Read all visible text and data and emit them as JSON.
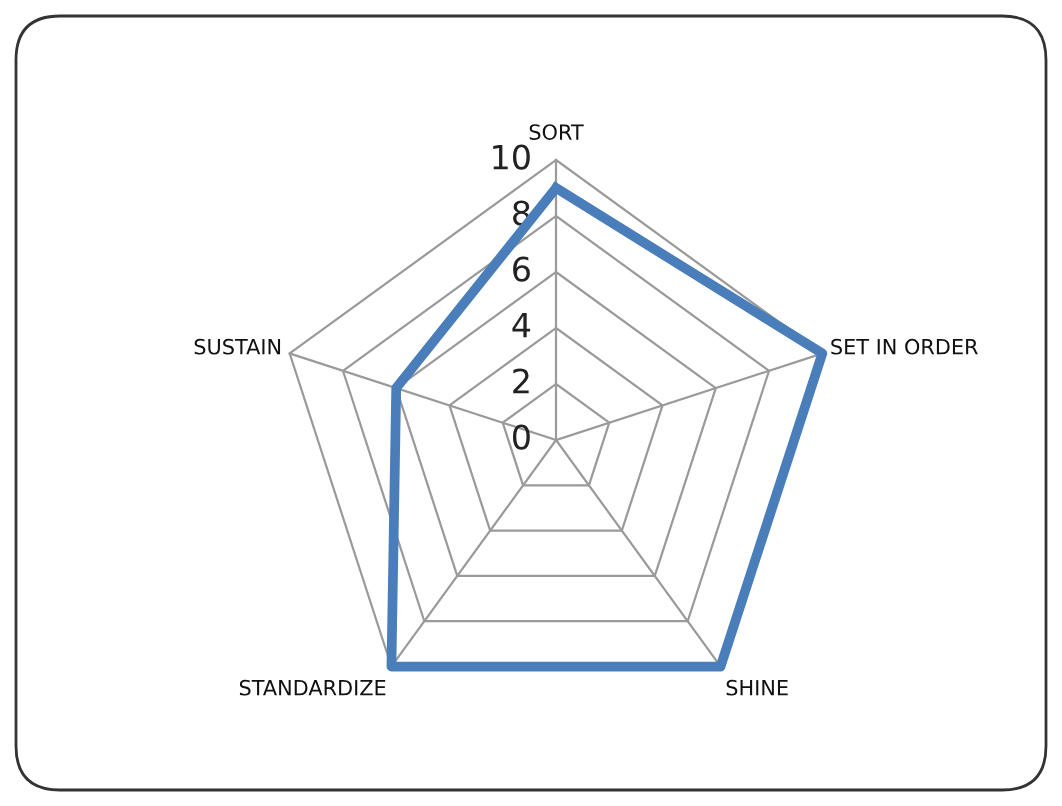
{
  "chart_data": {
    "type": "radar",
    "categories": [
      "SORT",
      "SET IN ORDER",
      "SHINE",
      "STANDARDIZE",
      "SUSTAIN"
    ],
    "series": [
      {
        "color": "#4a7ebb",
        "values": [
          9,
          10,
          10,
          10,
          6
        ]
      }
    ],
    "ylim": [
      0,
      10
    ],
    "yticks": [
      0,
      2,
      4,
      6,
      8,
      10
    ],
    "grid": true
  }
}
